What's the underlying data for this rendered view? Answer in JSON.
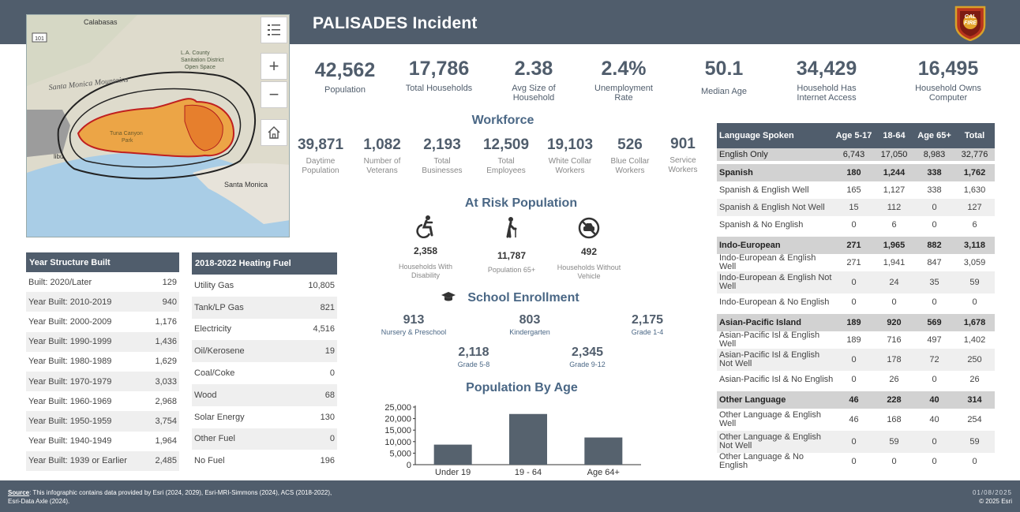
{
  "header": {
    "title": "PALISADES Incident",
    "logo_text": "CAL FIRE"
  },
  "map": {
    "labels": [
      "Calabasas",
      "L.A. County Sanitation District Open Space",
      "Santa Monica Mountains",
      "Tuna Canyon Park",
      "Santa Monica",
      "Malibu"
    ],
    "route_shield": "101"
  },
  "stats": [
    {
      "value": "42,562",
      "label": "Population"
    },
    {
      "value": "17,786",
      "label": "Total Households"
    },
    {
      "value": "2.38",
      "label": "Avg Size of Household"
    },
    {
      "value": "2.4%",
      "label": "Unemployment Rate"
    },
    {
      "value": "50.1",
      "label": "Median Age"
    },
    {
      "value": "34,429",
      "label": "Household Has Internet Access"
    },
    {
      "value": "16,495",
      "label": "Household Owns Computer"
    }
  ],
  "workforce": {
    "title": "Workforce",
    "items": [
      {
        "value": "39,871",
        "label": "Daytime Population"
      },
      {
        "value": "1,082",
        "label": "Number of Veterans"
      },
      {
        "value": "2,193",
        "label": "Total Businesses"
      },
      {
        "value": "12,509",
        "label": "Total Employees"
      },
      {
        "value": "19,103",
        "label": "White Collar Workers"
      },
      {
        "value": "526",
        "label": "Blue Collar Workers"
      },
      {
        "value": "901",
        "label": "Service Workers"
      }
    ]
  },
  "at_risk": {
    "title": "At Risk Population",
    "items": [
      {
        "value": "2,358",
        "label": "Households With Disability",
        "icon": "wheelchair-icon"
      },
      {
        "value": "11,787",
        "label": "Population 65+",
        "icon": "elderly-icon"
      },
      {
        "value": "492",
        "label": "Households Without Vehicle",
        "icon": "no-car-icon"
      }
    ]
  },
  "school": {
    "title": "School Enrollment",
    "items": [
      {
        "value": "913",
        "label": "Nursery & Preschool"
      },
      {
        "value": "803",
        "label": "Kindergarten"
      },
      {
        "value": "2,175",
        "label": "Grade 1-4"
      },
      {
        "value": "2,118",
        "label": "Grade 5-8"
      },
      {
        "value": "2,345",
        "label": "Grade 9-12"
      }
    ]
  },
  "chart_data": {
    "type": "bar",
    "title": "Population By Age",
    "categories": [
      "Under 19",
      "19 - 64",
      "Age 64+"
    ],
    "values": [
      8700,
      22000,
      11800
    ],
    "yticks": [
      "25,000",
      "20,000",
      "15,000",
      "10,000",
      "5,000",
      "0"
    ],
    "ylim": [
      0,
      25000
    ],
    "grid": false,
    "bar_color": "#56626e"
  },
  "year_built": {
    "header": "Year Structure Built",
    "rows": [
      {
        "label": "Built: 2020/Later",
        "value": "129"
      },
      {
        "label": "Year Built: 2010-2019",
        "value": "940"
      },
      {
        "label": "Year Built: 2000-2009",
        "value": "1,176"
      },
      {
        "label": "Year Built: 1990-1999",
        "value": "1,436"
      },
      {
        "label": "Year Built: 1980-1989",
        "value": "1,629"
      },
      {
        "label": "Year Built: 1970-1979",
        "value": "3,033"
      },
      {
        "label": "Year Built: 1960-1969",
        "value": "2,968"
      },
      {
        "label": "Year Built: 1950-1959",
        "value": "3,754"
      },
      {
        "label": "Year Built: 1940-1949",
        "value": "1,964"
      },
      {
        "label": "Year Built: 1939 or Earlier",
        "value": "2,485"
      }
    ]
  },
  "heating": {
    "header": "2018-2022 Heating Fuel",
    "rows": [
      {
        "label": "Utility Gas",
        "value": "10,805"
      },
      {
        "label": "Tank/LP Gas",
        "value": "821"
      },
      {
        "label": "Electricity",
        "value": "4,516"
      },
      {
        "label": "Oil/Kerosene",
        "value": "19"
      },
      {
        "label": "Coal/Coke",
        "value": "0"
      },
      {
        "label": "Wood",
        "value": "68"
      },
      {
        "label": "Solar Energy",
        "value": "130"
      },
      {
        "label": "Other Fuel",
        "value": "0"
      },
      {
        "label": "No Fuel",
        "value": "196"
      }
    ]
  },
  "language": {
    "headers": [
      "Language Spoken",
      "Age 5-17",
      "18-64",
      "Age 65+",
      "Total"
    ],
    "rows": [
      {
        "type": "eng",
        "cells": [
          "English Only",
          "6,743",
          "17,050",
          "8,983",
          "32,776"
        ]
      },
      {
        "type": "grp",
        "cells": [
          "Spanish",
          "180",
          "1,244",
          "338",
          "1,762"
        ]
      },
      {
        "type": "sub",
        "cells": [
          "Spanish & English Well",
          "165",
          "1,127",
          "338",
          "1,630"
        ]
      },
      {
        "type": "alt",
        "cells": [
          "Spanish & English Not Well",
          "15",
          "112",
          "0",
          "127"
        ]
      },
      {
        "type": "sub",
        "cells": [
          "Spanish & No English",
          "0",
          "6",
          "0",
          "6"
        ]
      },
      {
        "type": "grp",
        "cells": [
          "Indo-European",
          "271",
          "1,965",
          "882",
          "3,118"
        ]
      },
      {
        "type": "sub",
        "cells": [
          "Indo-European & English Well",
          "271",
          "1,941",
          "847",
          "3,059"
        ]
      },
      {
        "type": "alt2",
        "cells": [
          "Indo-European & English Not Well",
          "0",
          "24",
          "35",
          "59"
        ]
      },
      {
        "type": "sub",
        "cells": [
          "Indo-European & No English",
          "0",
          "0",
          "0",
          "0"
        ]
      },
      {
        "type": "grp",
        "cells": [
          "Asian-Pacific Island",
          "189",
          "920",
          "569",
          "1,678"
        ]
      },
      {
        "type": "sub",
        "cells": [
          "Asian-Pacific Isl & English Well",
          "189",
          "716",
          "497",
          "1,402"
        ]
      },
      {
        "type": "alt2",
        "cells": [
          "Asian-Pacific Isl & English Not Well",
          "0",
          "178",
          "72",
          "250"
        ]
      },
      {
        "type": "sub",
        "cells": [
          "Asian-Pacific Isl & No English",
          "0",
          "26",
          "0",
          "26"
        ]
      },
      {
        "type": "grp",
        "cells": [
          "Other Language",
          "46",
          "228",
          "40",
          "314"
        ]
      },
      {
        "type": "sub2",
        "cells": [
          "Other Language & English Well",
          "46",
          "168",
          "40",
          "254"
        ]
      },
      {
        "type": "alt2",
        "cells": [
          "Other Language & English Not Well",
          "0",
          "59",
          "0",
          "59"
        ]
      },
      {
        "type": "sub",
        "cells": [
          "Other Language & No English",
          "0",
          "0",
          "0",
          "0"
        ]
      }
    ]
  },
  "footer": {
    "source_label": "Source",
    "source_text": ": This infographic contains data provided by Esri (2024, 2029), Esri-MRI-Simmons (2024), ACS (2018-2022),",
    "source_text2": "Esri-Data Axle (2024).",
    "date": "01/08/2025",
    "copyright": "© 2025 Esri"
  }
}
